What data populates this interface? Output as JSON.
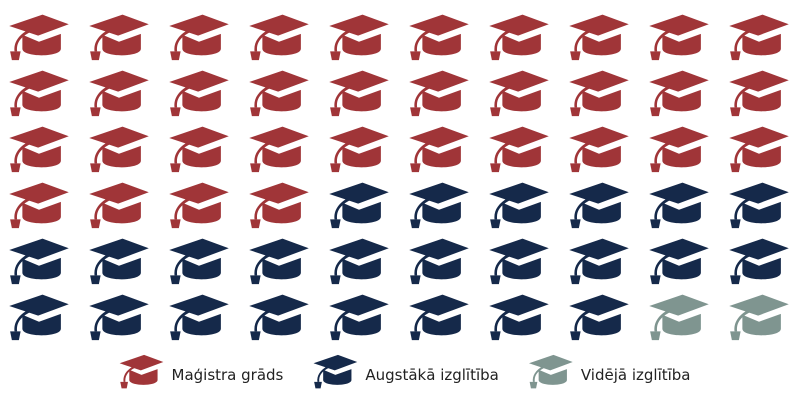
{
  "chart_data": {
    "type": "pictogram",
    "icon": "graduation-cap-icon",
    "icons_per_row": 10,
    "series": [
      {
        "name": "Maģistra grāds",
        "value": 34,
        "color": "#a03538"
      },
      {
        "name": "Augstākā izglītība",
        "value": 24,
        "color": "#15294a"
      },
      {
        "name": "Vidējā izglītība",
        "value": 2,
        "color": "#7f9590"
      }
    ],
    "legend_position": "bottom-center"
  }
}
